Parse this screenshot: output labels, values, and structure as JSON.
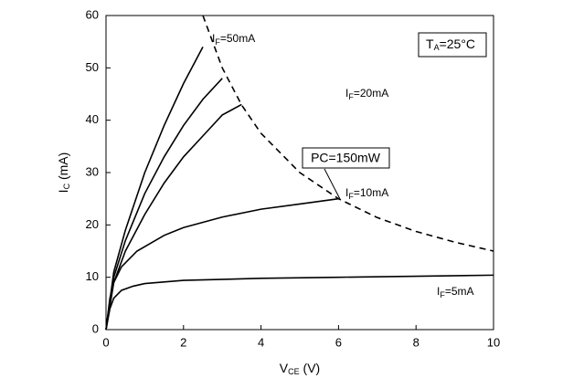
{
  "chart_data": {
    "type": "line",
    "x_label": {
      "main": "V",
      "sub": "CE",
      "unit": " (V)"
    },
    "y_label": {
      "main": "I",
      "sub": "C",
      "unit": " (mA)"
    },
    "xlim": [
      0,
      10
    ],
    "xticks": [
      0,
      2,
      4,
      6,
      8,
      10
    ],
    "ylim": [
      0,
      60
    ],
    "yticks": [
      0,
      10,
      20,
      30,
      40,
      50,
      60
    ],
    "color": "#000000",
    "series": [
      {
        "label": [
          "I",
          "F",
          "=5mA"
        ],
        "x": [
          0,
          0.1,
          0.2,
          0.4,
          0.7,
          1,
          2,
          4,
          6,
          8,
          10
        ],
        "values": [
          0,
          4,
          6,
          7.5,
          8.3,
          8.8,
          9.4,
          9.8,
          10,
          10.2,
          10.4
        ]
      },
      {
        "label": [
          "I",
          "F",
          "=10mA"
        ],
        "x": [
          0,
          0.1,
          0.2,
          0.4,
          0.8,
          1.5,
          2,
          3,
          4,
          5,
          6
        ],
        "values": [
          0,
          6,
          9,
          12,
          15,
          18,
          19.5,
          21.5,
          23,
          24,
          25
        ]
      },
      {
        "label": [
          "I",
          "F",
          "=20mA"
        ],
        "x": [
          0,
          0.2,
          0.5,
          1,
          1.5,
          2,
          2.5,
          3,
          3.5
        ],
        "values": [
          0,
          9,
          15,
          22,
          28,
          33,
          37,
          41,
          43
        ]
      },
      {
        "x": [
          0,
          0.2,
          0.5,
          1,
          1.5,
          2,
          2.5,
          3
        ],
        "values": [
          0,
          10,
          17,
          26,
          33,
          39,
          44,
          48
        ]
      },
      {
        "label": [
          "I",
          "F",
          "=50mA"
        ],
        "x": [
          0,
          0.2,
          0.5,
          1,
          1.5,
          2,
          2.5
        ],
        "values": [
          0,
          11,
          19,
          30,
          39,
          47,
          54
        ]
      }
    ],
    "limit_curve": {
      "label": "PC=150mW",
      "x": [
        2.5,
        3,
        3.5,
        4,
        5,
        6,
        7,
        8,
        9,
        10
      ],
      "values": [
        60,
        50,
        42.9,
        37.5,
        30,
        25,
        21.4,
        18.75,
        16.7,
        15
      ]
    },
    "condition": {
      "main": "T",
      "sub": "A",
      "rest": "=25°C"
    }
  }
}
